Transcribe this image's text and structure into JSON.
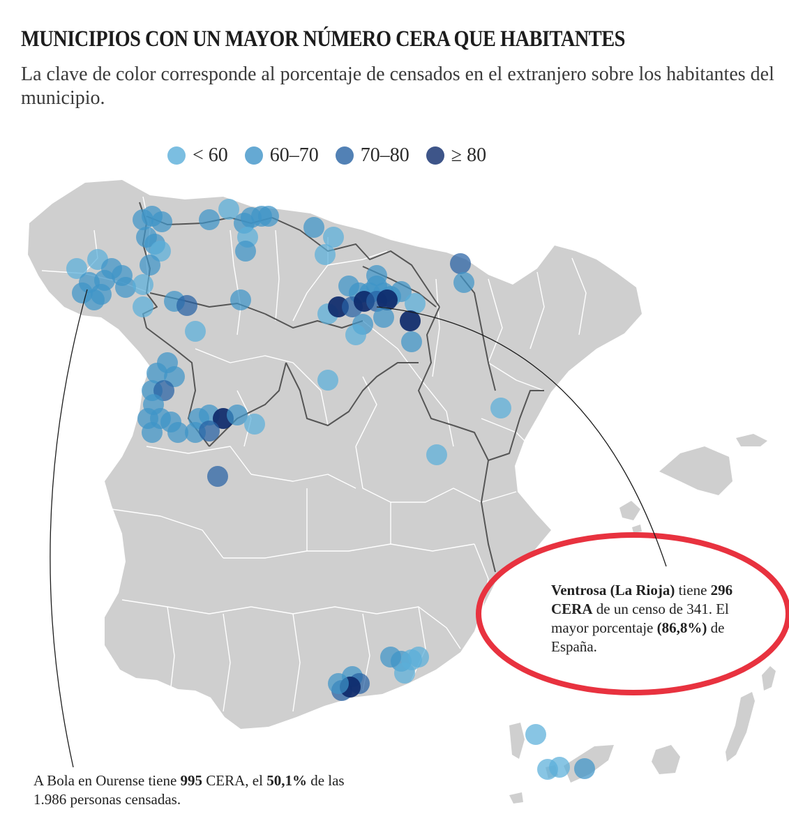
{
  "title": "MUNICIPIOS CON UN MAYOR NÚMERO CERA QUE HABITANTES",
  "subtitle": "La clave de color corresponde al porcentaje de censados en el extranjero sobre los habitantes del municipio.",
  "legend": [
    {
      "label": "< 60",
      "color": "#5aaed9"
    },
    {
      "label": "60–70",
      "color": "#3f94c8"
    },
    {
      "label": "70–80",
      "color": "#2761a3"
    },
    {
      "label": "≥ 80",
      "color": "#0e2a6b"
    }
  ],
  "colors": {
    "land": "#cfcfcf",
    "region_border": "#ffffff",
    "community_border": "#555555",
    "highlight_ring": "#e8323f"
  },
  "annotations": {
    "ventrosa": {
      "place": "Ventrosa (La Rioja)",
      "t1": " tiene ",
      "cera": "296 CERA",
      "t2": " de un censo de 341. El mayor porcentaje ",
      "pct": "(86,8%)",
      "t3": " de España."
    },
    "bola": {
      "t1": "A Bola en Ourense tiene ",
      "cera": "995",
      "t2": " CERA, el ",
      "pct": "50,1%",
      "t3": " de las 1.986 personas censadas."
    }
  }
}
